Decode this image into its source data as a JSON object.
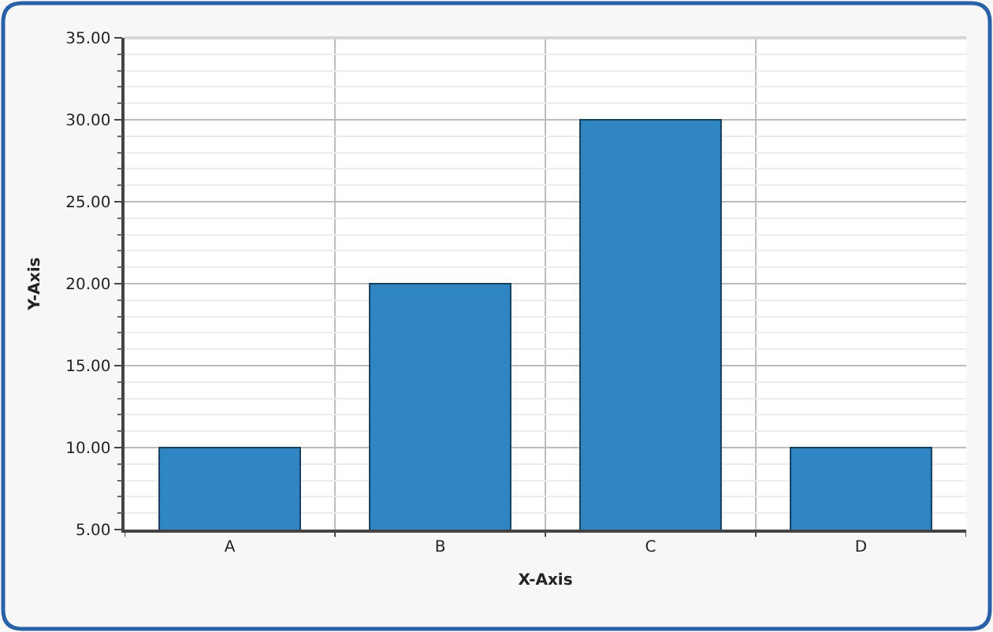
{
  "chart_data": {
    "type": "bar",
    "xlabel": "X-Axis",
    "ylabel": "Y-Axis",
    "categories": [
      "A",
      "B",
      "C",
      "D"
    ],
    "series": [
      {
        "color": "#2f86c3",
        "values": [
          10,
          20,
          30,
          10
        ]
      }
    ],
    "ylim": [
      5,
      35
    ],
    "yticks": [
      {
        "value": 5,
        "label": "5.00"
      },
      {
        "value": 10,
        "label": "10.00"
      },
      {
        "value": 15,
        "label": "15.00"
      },
      {
        "value": 20,
        "label": "20.00"
      },
      {
        "value": 25,
        "label": "25.00"
      },
      {
        "value": 30,
        "label": "30.00"
      },
      {
        "value": 35,
        "label": "35.00"
      }
    ],
    "grid": true
  }
}
